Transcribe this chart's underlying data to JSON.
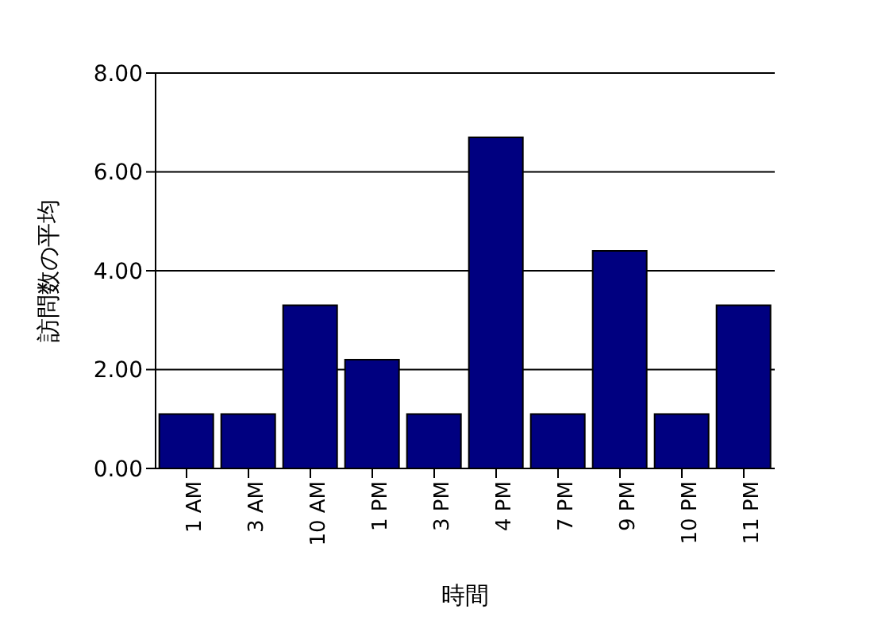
{
  "chart_data": {
    "type": "bar",
    "xlabel": "時間",
    "ylabel": "訪問数の平均",
    "categories": [
      "1 AM",
      "3 AM",
      "10 AM",
      "1 PM",
      "3 PM",
      "4 PM",
      "7 PM",
      "9 PM",
      "10 PM",
      "11 PM"
    ],
    "values": [
      1.1,
      1.1,
      3.3,
      2.2,
      1.1,
      6.7,
      1.1,
      4.4,
      1.1,
      3.3
    ],
    "color": "#000080",
    "ylim": [
      0,
      8
    ],
    "yticks": [
      {
        "value": 0,
        "label": "0.00"
      },
      {
        "value": 2,
        "label": "2.00"
      },
      {
        "value": 4,
        "label": "4.00"
      },
      {
        "value": 6,
        "label": "6.00"
      },
      {
        "value": 8,
        "label": "8.00"
      }
    ],
    "grid": "y"
  }
}
